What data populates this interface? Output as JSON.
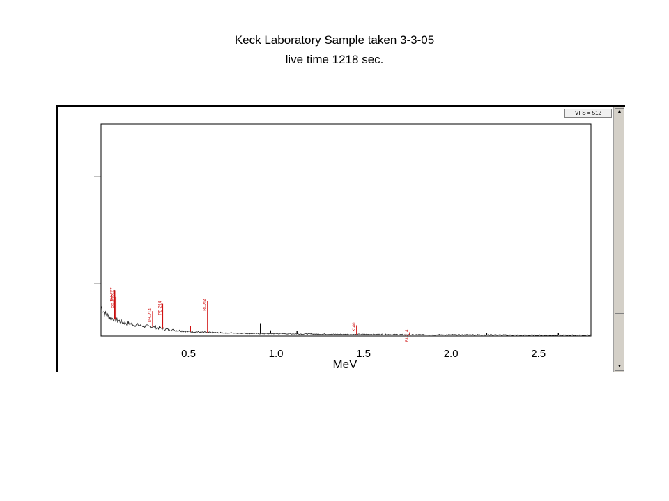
{
  "title_line1": "Keck Laboratory Sample taken 3-3-05",
  "title_line2": "live time 1218 sec.",
  "vfs_label": "VFS = 512",
  "chart_data": {
    "type": "line",
    "xlabel": "MeV",
    "ylabel": "",
    "xlim": [
      0,
      2.8
    ],
    "ylim": [
      0,
      512
    ],
    "x_ticks": [
      0.5,
      1.0,
      1.5,
      2.0,
      2.5
    ],
    "x_tick_labels": [
      "0.5",
      "1.0",
      "1.5",
      "2.0",
      "2.5"
    ],
    "y_ticks": [
      128,
      256,
      384
    ],
    "grid": false,
    "baseline": [
      [
        0.0,
        72
      ],
      [
        0.02,
        55
      ],
      [
        0.05,
        45
      ],
      [
        0.08,
        40
      ],
      [
        0.12,
        34
      ],
      [
        0.16,
        30
      ],
      [
        0.2,
        27
      ],
      [
        0.25,
        24
      ],
      [
        0.3,
        22
      ],
      [
        0.35,
        18
      ],
      [
        0.4,
        15
      ],
      [
        0.5,
        11
      ],
      [
        0.6,
        9
      ],
      [
        0.7,
        8
      ],
      [
        0.8,
        7
      ],
      [
        0.9,
        6
      ],
      [
        1.0,
        6
      ],
      [
        1.2,
        5
      ],
      [
        1.4,
        4
      ],
      [
        1.6,
        4
      ],
      [
        1.8,
        3
      ],
      [
        2.0,
        3
      ],
      [
        2.2,
        3
      ],
      [
        2.4,
        2
      ],
      [
        2.6,
        2
      ],
      [
        2.8,
        2
      ]
    ],
    "peaks": [
      {
        "x": 0.075,
        "height": 70,
        "color": "#000000"
      },
      {
        "x": 0.0787,
        "height": 70,
        "color": "#d01010",
        "label": "TH-227",
        "label_offset": 130
      },
      {
        "x": 0.085,
        "height": 55,
        "color": "#d01010",
        "label": "PB-212",
        "label_offset": 75
      },
      {
        "x": 0.295,
        "height": 38,
        "color": "#d01010",
        "label": "PB-214",
        "label_offset": 50
      },
      {
        "x": 0.352,
        "height": 60,
        "color": "#d01010",
        "label": "PB-214",
        "label_offset": 85
      },
      {
        "x": 0.511,
        "height": 14,
        "color": "#d01010"
      },
      {
        "x": 0.609,
        "height": 75,
        "color": "#d01010",
        "label": "BI-214",
        "label_offset": 85
      },
      {
        "x": 0.911,
        "height": 25,
        "color": "#000000"
      },
      {
        "x": 0.969,
        "height": 8,
        "color": "#000000"
      },
      {
        "x": 1.12,
        "height": 8,
        "color": "#000000"
      },
      {
        "x": 1.461,
        "height": 22,
        "color": "#d01010",
        "label": "K-40",
        "label_offset": 35
      },
      {
        "x": 1.764,
        "height": 6,
        "color": "#d01010",
        "label": "BI-214",
        "label_offset": 35
      },
      {
        "x": 2.204,
        "height": 4,
        "color": "#000000"
      },
      {
        "x": 2.614,
        "height": 6,
        "color": "#000000"
      }
    ]
  }
}
